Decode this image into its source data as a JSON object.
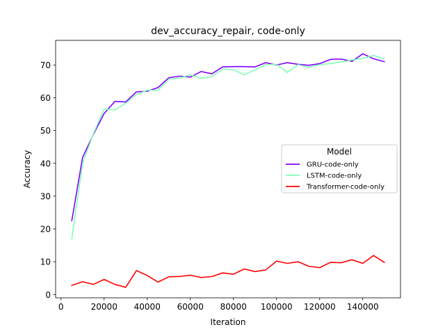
{
  "chart_data": {
    "type": "line",
    "title": "dev_accuracy_repair, code-only",
    "xlabel": "Iteration",
    "ylabel": "Accuracy",
    "xlim": [
      -2500,
      157500
    ],
    "ylim": [
      -1,
      77.5
    ],
    "xticks": [
      0,
      20000,
      40000,
      60000,
      80000,
      100000,
      120000,
      140000
    ],
    "yticks": [
      0,
      10,
      20,
      30,
      40,
      50,
      60,
      70
    ],
    "grid": false,
    "legend_title": "Model",
    "legend_position": "center-right",
    "x": [
      5000,
      10000,
      15000,
      20000,
      25000,
      30000,
      35000,
      40000,
      45000,
      50000,
      55000,
      60000,
      65000,
      70000,
      75000,
      80000,
      85000,
      90000,
      95000,
      100000,
      105000,
      110000,
      115000,
      120000,
      125000,
      130000,
      135000,
      140000,
      145000,
      150000
    ],
    "series": [
      {
        "name": "GRU-code-only",
        "color": "#8000ff",
        "values": [
          22.5,
          41.8,
          48.8,
          55.2,
          58.9,
          58.7,
          61.8,
          62.0,
          63.1,
          66.1,
          66.6,
          66.3,
          68.0,
          67.3,
          69.4,
          69.5,
          69.5,
          69.4,
          70.7,
          70.0,
          70.7,
          70.2,
          69.9,
          70.4,
          71.7,
          71.8,
          71.1,
          73.4,
          71.9,
          71.0
        ]
      },
      {
        "name": "LSTM-code-only",
        "color": "#80ffb4",
        "values": [
          17.0,
          40.0,
          49.0,
          56.5,
          56.3,
          58.3,
          61.0,
          62.3,
          62.3,
          65.7,
          66.0,
          67.0,
          65.9,
          66.5,
          68.7,
          68.6,
          67.0,
          68.5,
          70.1,
          70.2,
          67.7,
          70.1,
          69.3,
          70.1,
          70.4,
          70.9,
          71.5,
          72.0,
          72.9,
          71.8
        ]
      },
      {
        "name": "Transformer-code-only",
        "color": "#ff0000",
        "values": [
          2.8,
          3.9,
          3.1,
          4.6,
          3.1,
          2.2,
          7.3,
          5.8,
          3.8,
          5.4,
          5.5,
          5.9,
          5.2,
          5.5,
          6.6,
          6.2,
          7.8,
          7.0,
          7.5,
          10.2,
          9.5,
          10.0,
          8.6,
          8.2,
          9.8,
          9.7,
          10.6,
          9.5,
          11.9,
          9.8
        ]
      }
    ]
  }
}
